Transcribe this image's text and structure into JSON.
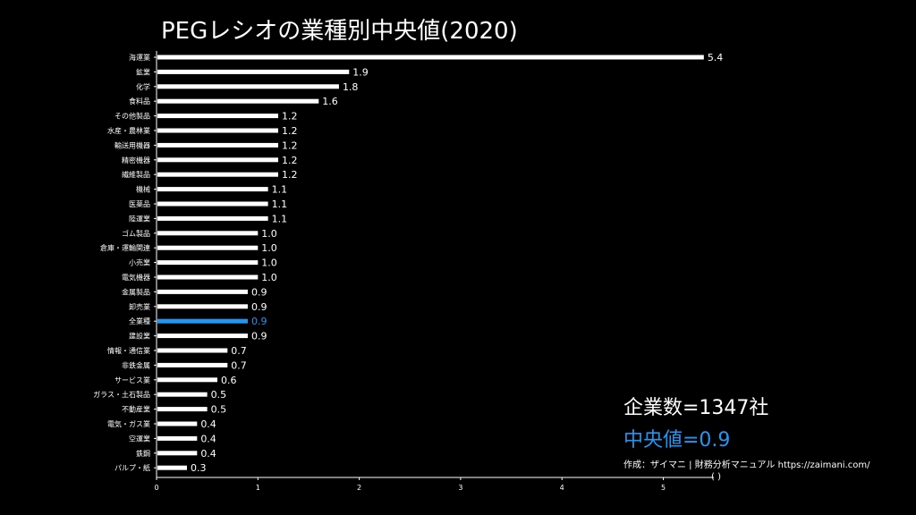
{
  "colors": {
    "bar": "#ffffff",
    "highlight": "#2196f3",
    "background": "#000000",
    "text": "#ffffff"
  },
  "chart_data": {
    "type": "bar",
    "orientation": "horizontal",
    "title": "PEGレシオの業種別中央値(2020)",
    "xlabel": "",
    "ylabel": "",
    "xlim": [
      0,
      5.5
    ],
    "xticks": [
      0,
      1,
      2,
      3,
      4,
      5
    ],
    "grid": false,
    "highlight_category": "全業種",
    "categories": [
      "海運業",
      "鉱業",
      "化学",
      "食料品",
      "その他製品",
      "水産・農林業",
      "輸送用機器",
      "精密機器",
      "繊維製品",
      "機械",
      "医薬品",
      "陸運業",
      "ゴム製品",
      "倉庫・運輸関連",
      "小売業",
      "電気機器",
      "金属製品",
      "卸売業",
      "全業種",
      "建設業",
      "情報・通信業",
      "非鉄金属",
      "サービス業",
      "ガラス・土石製品",
      "不動産業",
      "電気・ガス業",
      "空運業",
      "鉄鋼",
      "パルプ・紙"
    ],
    "values": [
      5.4,
      1.9,
      1.8,
      1.6,
      1.2,
      1.2,
      1.2,
      1.2,
      1.2,
      1.1,
      1.1,
      1.1,
      1.0,
      1.0,
      1.0,
      1.0,
      0.9,
      0.9,
      0.9,
      0.9,
      0.7,
      0.7,
      0.6,
      0.5,
      0.5,
      0.4,
      0.4,
      0.4,
      0.3
    ],
    "value_labels": [
      "5.4",
      "1.9",
      "1.8",
      "1.6",
      "1.2",
      "1.2",
      "1.2",
      "1.2",
      "1.2",
      "1.1",
      "1.1",
      "1.1",
      "1.0",
      "1.0",
      "1.0",
      "1.0",
      "0.9",
      "0.9",
      "0.9",
      "0.9",
      "0.7",
      "0.7",
      "0.6",
      "0.5",
      "0.5",
      "0.4",
      "0.4",
      "0.4",
      "0.3"
    ]
  },
  "stats": {
    "count_text": "企業数=1347社",
    "median_text": "中央値=0.9"
  },
  "credit": {
    "text": "作成：ザイマニ | 財務分析マニュアル https://zaimani.com/",
    "paren": "(  )"
  }
}
